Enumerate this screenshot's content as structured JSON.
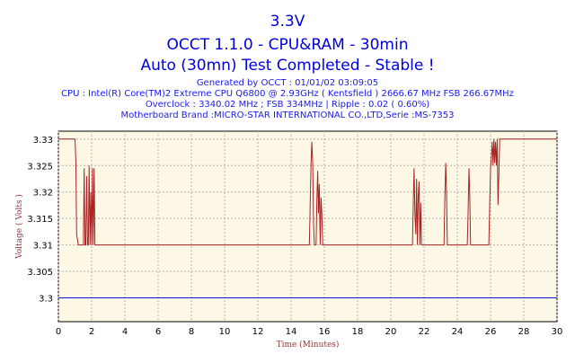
{
  "header": {
    "title_main": "3.3V",
    "title_sub": "OCCT 1.1.0 - CPU&RAM - 30min",
    "title_status": "Auto (30mn) Test Completed - Stable !",
    "generated": "Generated by OCCT : 01/01/02 03:09:05",
    "cpu": "CPU : Intel(R) Core(TM)2 Extreme CPU Q6800  @ 2.93GHz ( Kentsfield ) 2666.67 MHz FSB 266.67MHz",
    "overclock": "Overclock : 3340.02 MHz ; FSB 334MHz | Ripple : 0.02 ( 0.60%)",
    "motherboard": "Motherboard Brand :MICRO-STAR INTERNATIONAL CO.,LTD,Serie :MS-7353"
  },
  "colors": {
    "plot_bg": "#fdf8e6",
    "grid": "#b0b0b0",
    "series_voltage": "#aa2222",
    "series_reference": "#1111dd",
    "axis_label": "#993333"
  },
  "chart_data": {
    "type": "line",
    "xlabel": "Time (Minutes)",
    "ylabel": "Voltage ( Volts )",
    "xlim": [
      0,
      30
    ],
    "ylim": [
      3.2955,
      3.3315
    ],
    "x_ticks": [
      "0",
      "2",
      "4",
      "6",
      "8",
      "10",
      "12",
      "14",
      "16",
      "18",
      "20",
      "22",
      "24",
      "26",
      "28",
      "30"
    ],
    "y_ticks": [
      "3.33",
      "3.325",
      "3.32",
      "3.315",
      "3.31",
      "3.305",
      "3.3"
    ],
    "grid": true,
    "series": [
      {
        "color": "#aa2222",
        "x": [
          0,
          1.0,
          1.05,
          1.1,
          1.2,
          1.5,
          1.55,
          1.6,
          1.65,
          1.7,
          1.75,
          1.8,
          1.85,
          1.9,
          1.95,
          2.0,
          2.05,
          2.1,
          2.15,
          2.2,
          2.3,
          15.1,
          15.15,
          15.2,
          15.25,
          15.3,
          15.35,
          15.4,
          15.5,
          15.55,
          15.6,
          15.65,
          15.7,
          15.75,
          15.8,
          15.85,
          15.9,
          21.3,
          21.35,
          21.4,
          21.45,
          21.5,
          21.55,
          21.6,
          21.65,
          21.7,
          21.75,
          21.8,
          21.85,
          21.9,
          23.2,
          23.25,
          23.3,
          23.35,
          23.4,
          23.45,
          23.5,
          24.6,
          24.65,
          24.7,
          24.75,
          24.8,
          24.85,
          24.9,
          25.9,
          25.95,
          26.0,
          26.05,
          26.1,
          26.15,
          26.2,
          26.25,
          26.3,
          26.35,
          26.4,
          26.45,
          26.5,
          26.55,
          26.6,
          30
        ],
        "values": [
          3.33,
          3.33,
          3.326,
          3.312,
          3.31,
          3.31,
          3.3245,
          3.31,
          3.31,
          3.323,
          3.31,
          3.31,
          3.325,
          3.31,
          3.32,
          3.31,
          3.3245,
          3.31,
          3.3245,
          3.31,
          3.31,
          3.31,
          3.318,
          3.3255,
          3.3295,
          3.325,
          3.314,
          3.31,
          3.31,
          3.3185,
          3.324,
          3.316,
          3.3215,
          3.31,
          3.319,
          3.316,
          3.31,
          3.31,
          3.318,
          3.3245,
          3.316,
          3.312,
          3.3225,
          3.31,
          3.319,
          3.322,
          3.31,
          3.318,
          3.31,
          3.31,
          3.31,
          3.3185,
          3.3255,
          3.32,
          3.31,
          3.31,
          3.31,
          3.31,
          3.316,
          3.3245,
          3.319,
          3.31,
          3.31,
          3.31,
          3.31,
          3.318,
          3.3245,
          3.3265,
          3.3295,
          3.325,
          3.33,
          3.3255,
          3.3295,
          3.325,
          3.33,
          3.3175,
          3.3235,
          3.33,
          3.33,
          3.33
        ]
      },
      {
        "color": "#1111dd",
        "x": [
          0,
          30
        ],
        "values": [
          3.3,
          3.3
        ]
      }
    ]
  }
}
